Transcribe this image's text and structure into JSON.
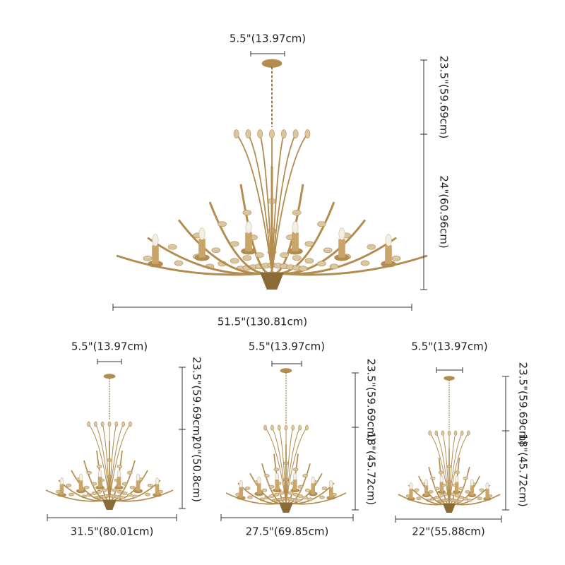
{
  "items": [
    {
      "canopy": "5.5\"(13.97cm)",
      "chain_height": "23.5\"(59.69cm)",
      "body_height": "24\"(60.96cm)",
      "width": "51.5\"(130.81cm)"
    },
    {
      "canopy": "5.5\"(13.97cm)",
      "chain_height": "23.5\"(59.69cm)",
      "body_height": "20\"(50.8cm)",
      "width": "31.5\"(80.01cm)"
    },
    {
      "canopy": "5.5\"(13.97cm)",
      "chain_height": "23.5\"(59.69cm)",
      "body_height": "18\"(45.72cm)",
      "width": "27.5\"(69.85cm)"
    },
    {
      "canopy": "5.5\"(13.97cm)",
      "chain_height": "23.5\"(59.69cm)",
      "body_height": "18\"(45.72cm)",
      "width": "22\"(55.88cm)"
    }
  ]
}
